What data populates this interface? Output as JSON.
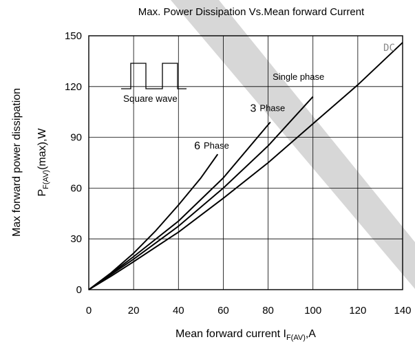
{
  "chart_data": {
    "type": "line",
    "title": "Max. Power Dissipation Vs.Mean forward Current",
    "xlabel": "Mean forward current  I",
    "xlabel_sub": "F(AV)",
    "xlabel_unit": ",A",
    "ylabel_line1": "Max forward power dissipation",
    "ylabel_line2_main": "P",
    "ylabel_line2_sub": "F(AV)",
    "ylabel_line2_rest": "(max),W",
    "xlim": [
      0,
      140
    ],
    "ylim": [
      0,
      150
    ],
    "x_ticks": [
      0,
      20,
      40,
      60,
      80,
      100,
      120,
      140
    ],
    "y_ticks": [
      0,
      30,
      60,
      90,
      120,
      150
    ],
    "grid": true,
    "inset_label": "Square wave",
    "series": [
      {
        "name": "DC",
        "x": [
          0,
          10,
          20,
          40,
          60,
          80,
          100,
          120,
          140
        ],
        "y": [
          0,
          8,
          16.5,
          34,
          54,
          75,
          98,
          121,
          146
        ],
        "label_x": 134,
        "label_y": 141,
        "label_style": "muted"
      },
      {
        "name": "Single phase",
        "x": [
          0,
          10,
          20,
          40,
          60,
          80,
          100
        ],
        "y": [
          0,
          9,
          18,
          37.5,
          60,
          85,
          114
        ],
        "label_x": 82,
        "label_y": 124,
        "label_style": "normal"
      },
      {
        "name_num": "3",
        "name": "Phase",
        "x": [
          0,
          10,
          20,
          40,
          60,
          81
        ],
        "y": [
          0,
          9.5,
          19.5,
          40.5,
          66,
          99
        ],
        "label_x": 72,
        "label_y": 105,
        "label_style": "numbered"
      },
      {
        "name_num": "6",
        "name": "Phase",
        "x": [
          0,
          10,
          20,
          30,
          40,
          50,
          57.5
        ],
        "y": [
          0,
          10,
          21.5,
          35,
          50,
          66,
          80
        ],
        "label_x": 47,
        "label_y": 83,
        "label_style": "numbered"
      }
    ]
  }
}
